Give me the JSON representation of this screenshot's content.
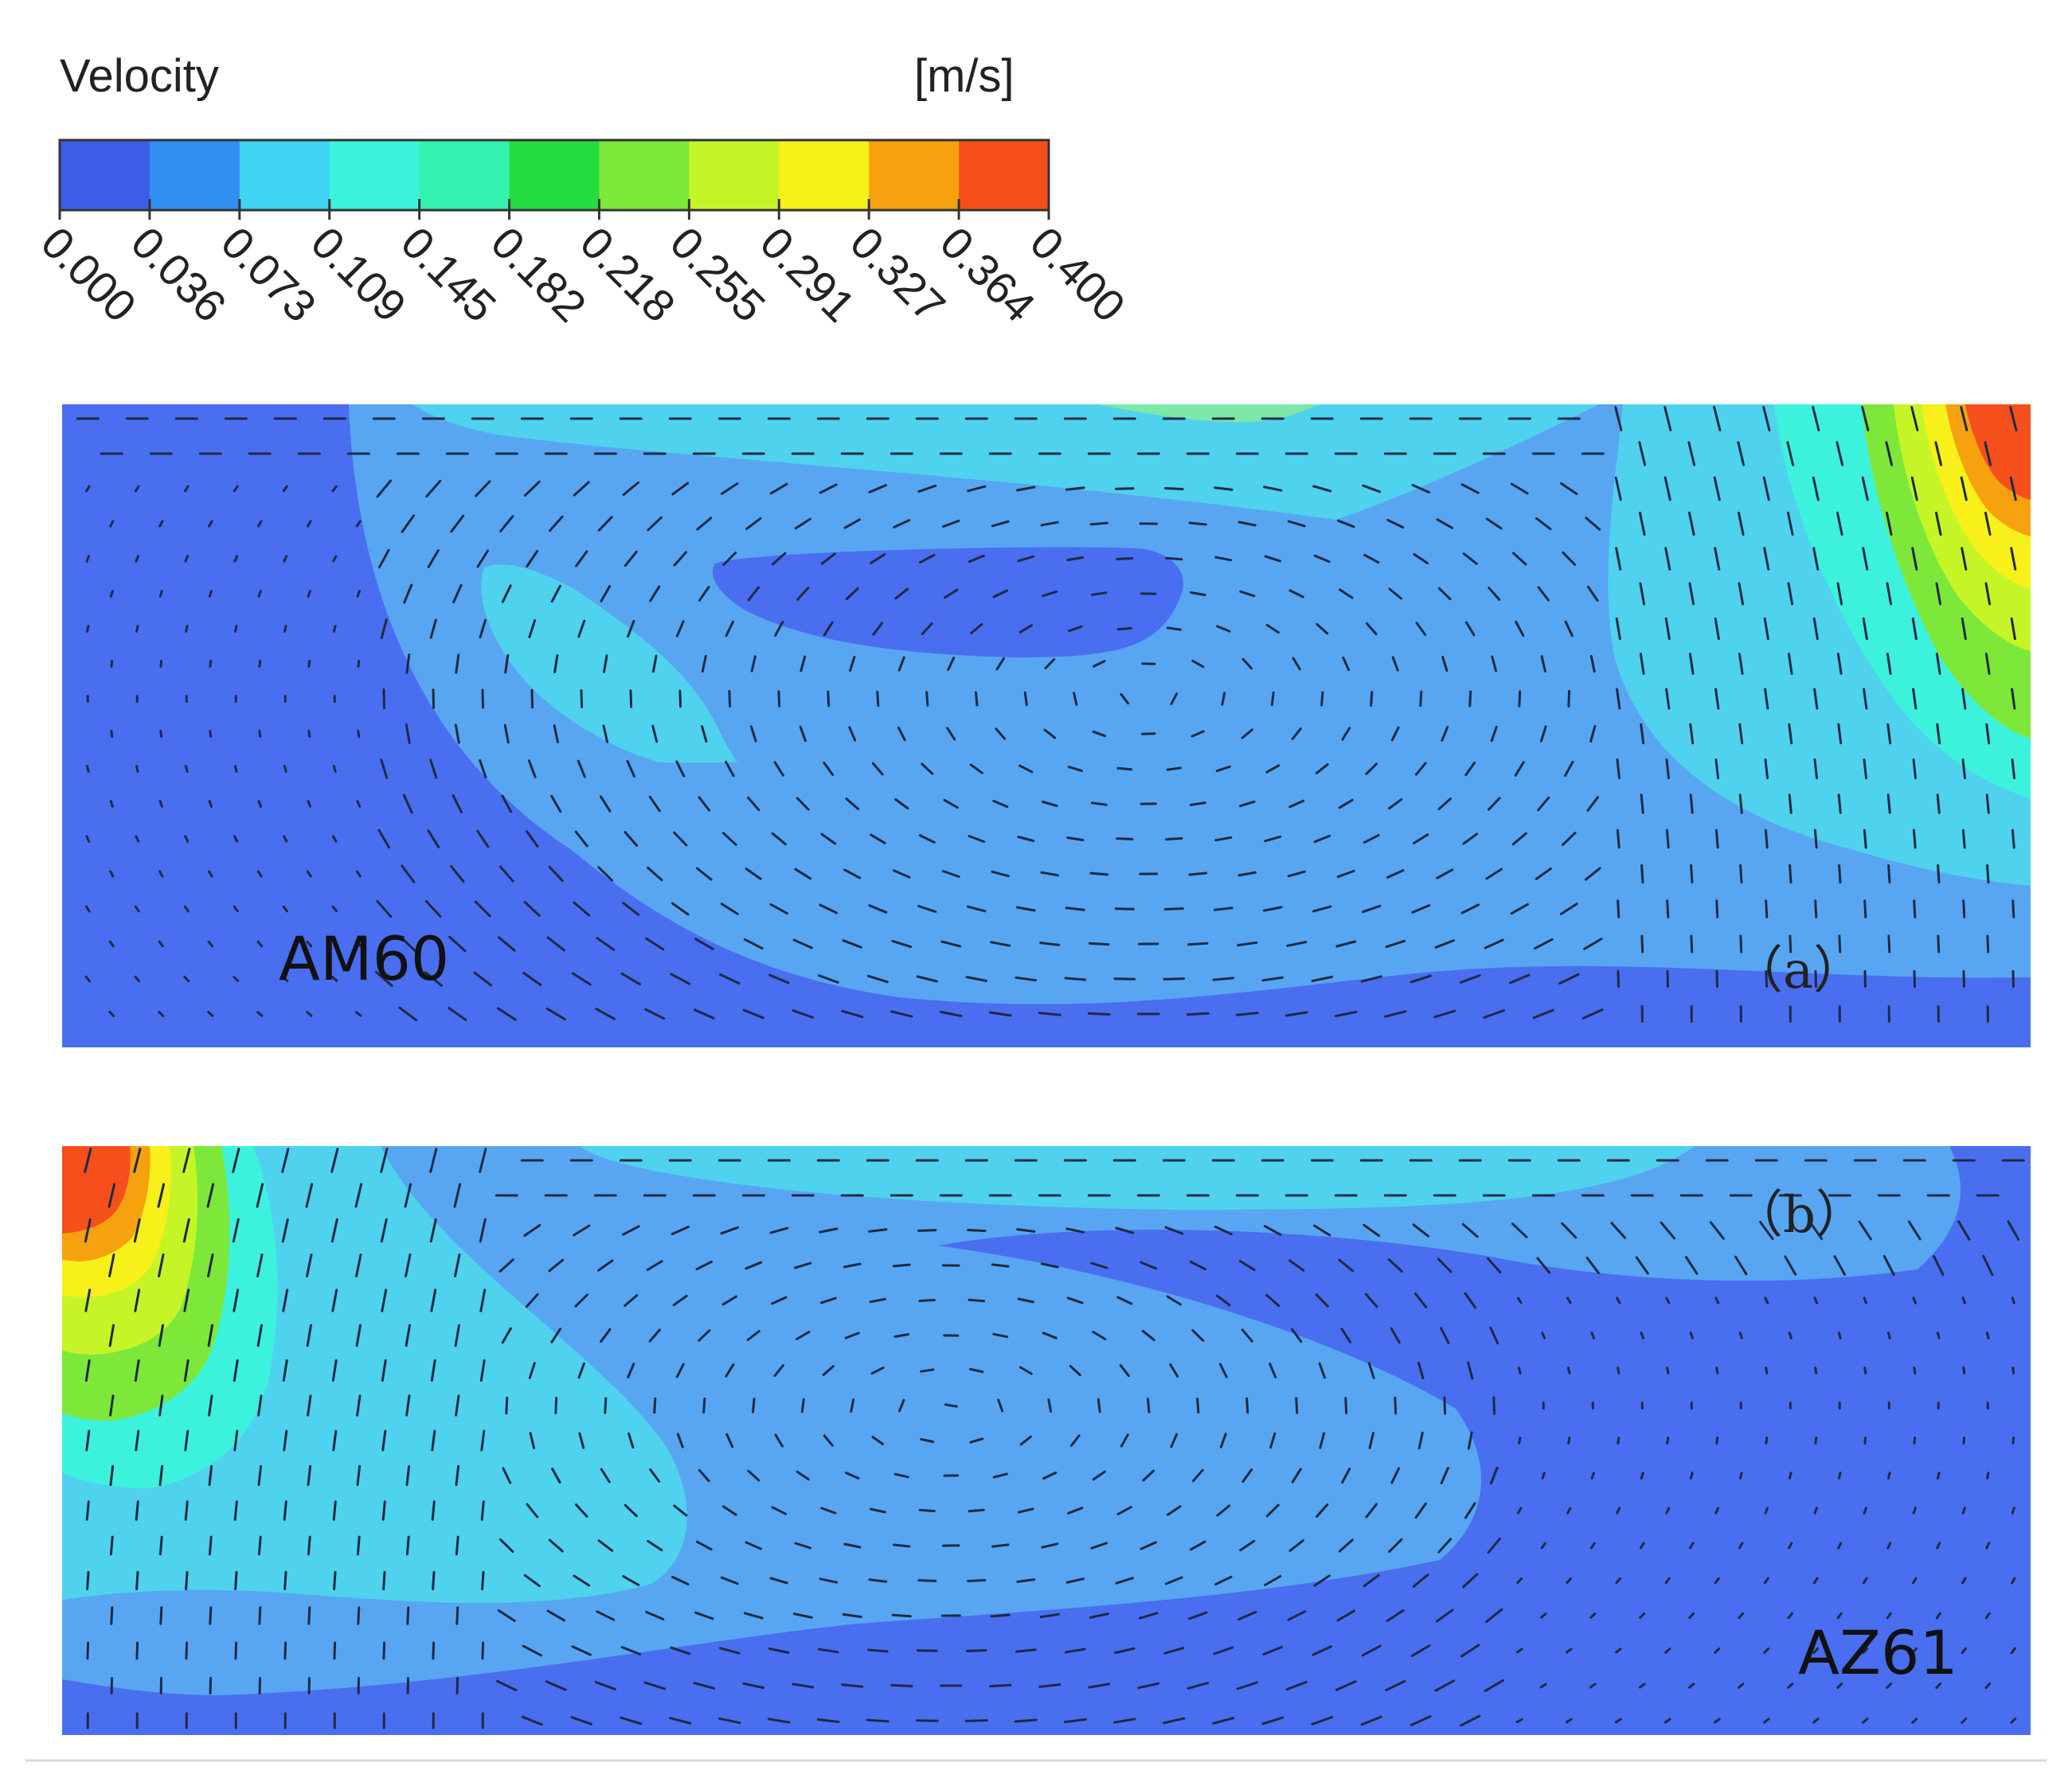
{
  "legend": {
    "title": "Velocity",
    "unit": "[m/s]",
    "ticks": [
      "0.000",
      "0.036",
      "0.073",
      "0.109",
      "0.145",
      "0.182",
      "0.218",
      "0.255",
      "0.291",
      "0.327",
      "0.364",
      "0.400"
    ],
    "colors": [
      "#3c5ee6",
      "#2f8ef0",
      "#3fd4f2",
      "#3df2dc",
      "#35f2b0",
      "#24dc3e",
      "#7ee83a",
      "#c6f527",
      "#f7f019",
      "#f6a20f",
      "#f5501c"
    ]
  },
  "panels": [
    {
      "tag": "（a）",
      "material": "AM60"
    },
    {
      "tag": "（b）",
      "material": "AZ61"
    }
  ],
  "colors": {
    "background": "#4a6ef0",
    "mid_flow": "#58a6f2",
    "surface_flow": "#4fd2ee",
    "vector": "#1e2a44"
  }
}
